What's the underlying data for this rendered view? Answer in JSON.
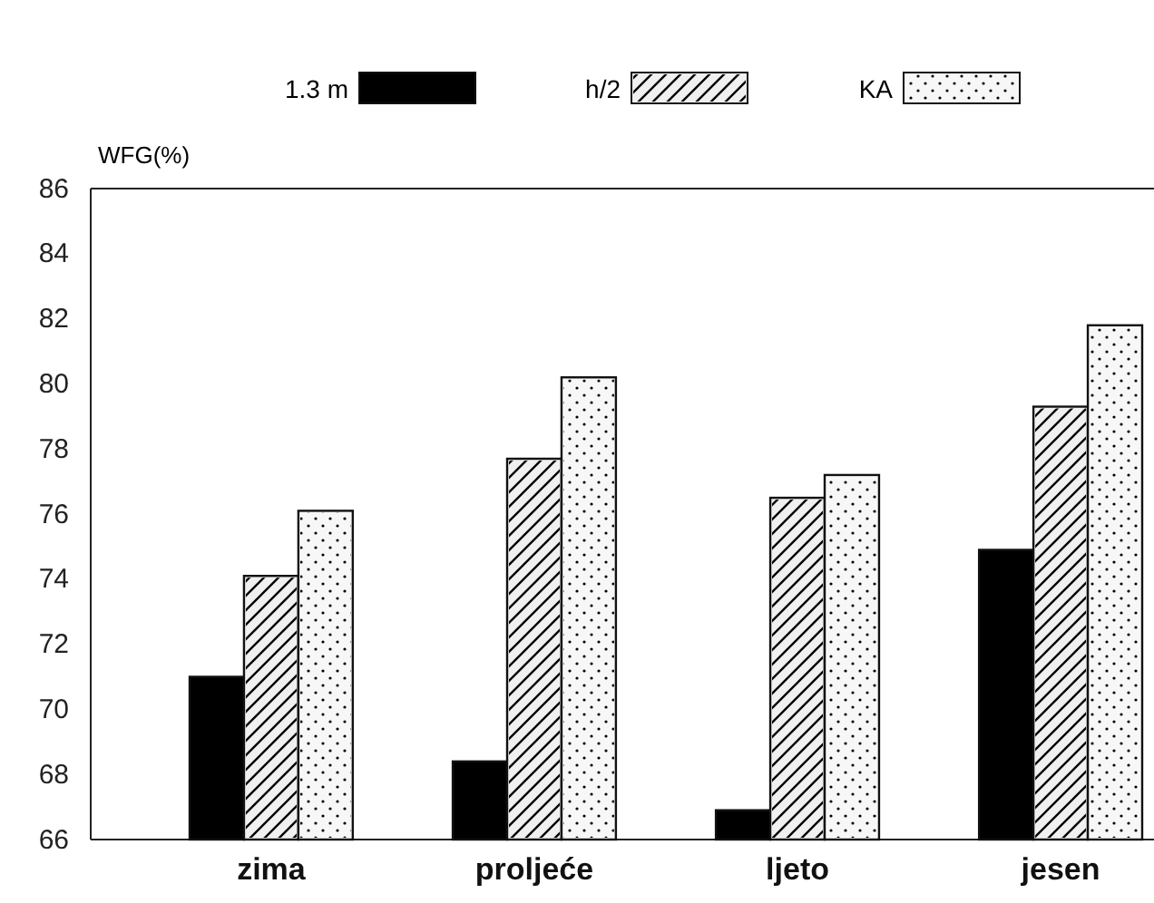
{
  "chart_data": {
    "type": "bar",
    "ylabel": "WFG(%)",
    "categories": [
      "zima",
      "proljeće",
      "ljeto",
      "jesen"
    ],
    "series": [
      {
        "name": "1.3 m",
        "color": "#000000",
        "values": [
          71.0,
          68.4,
          66.9,
          74.9
        ]
      },
      {
        "name": "h/2",
        "color": "#f0f0f0",
        "values": [
          74.1,
          77.7,
          76.5,
          79.3
        ]
      },
      {
        "name": "KA",
        "color": "#f7f7f7",
        "values": [
          76.1,
          80.2,
          77.2,
          81.8
        ]
      }
    ],
    "ylim": [
      66,
      86
    ],
    "yticks": [
      66,
      68,
      70,
      72,
      74,
      76,
      78,
      80,
      82,
      84,
      86
    ],
    "grid": false,
    "legend": "top"
  }
}
